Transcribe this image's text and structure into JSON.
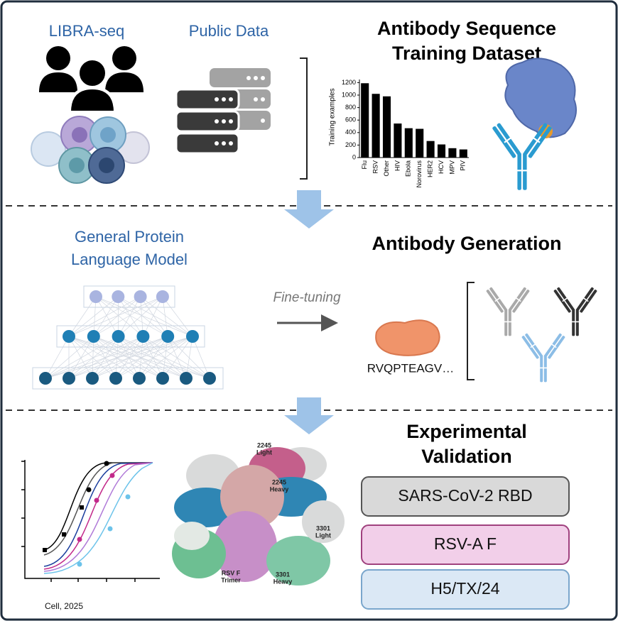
{
  "panel1": {
    "sources": [
      "LIBRA-seq",
      "Public Data"
    ],
    "title": [
      "Antibody Sequence",
      "Training Dataset"
    ]
  },
  "chart_data": {
    "type": "bar",
    "ylabel": "Training examples",
    "categories": [
      "Flu",
      "RSV",
      "Other",
      "HIV",
      "Ebola",
      "Norovirus",
      "HER2",
      "HCV",
      "MPV",
      "PIV"
    ],
    "values": [
      1190,
      1020,
      980,
      545,
      470,
      460,
      265,
      210,
      150,
      130
    ],
    "color": "#000000",
    "ylim": [
      0,
      1250
    ],
    "yticks": [
      0,
      200,
      400,
      600,
      800,
      1000,
      1200
    ]
  },
  "panel2": {
    "model": [
      "General Protein",
      "Language Model"
    ],
    "step": "Fine-tuning",
    "sequence": "RVQPTEAGV…",
    "title": "Antibody Generation"
  },
  "panel3": {
    "title": [
      "Experimental",
      "Validation"
    ],
    "targets": [
      "SARS-CoV-2 RBD",
      "RSV-A F",
      "H5/TX/24"
    ],
    "structure_labels": [
      [
        "2245",
        "Light"
      ],
      [
        "2245",
        "Heavy"
      ],
      [
        "3301",
        "Light"
      ],
      [
        "3301",
        "Heavy"
      ],
      [
        "RSV F",
        "Trimer"
      ]
    ],
    "citation": "Cell, 2025"
  }
}
